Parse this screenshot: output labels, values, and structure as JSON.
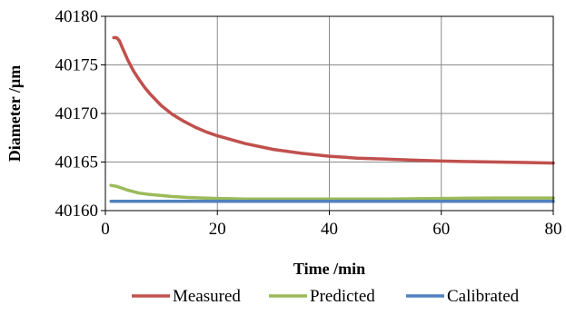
{
  "chart_data": {
    "type": "line",
    "title": "",
    "xlabel": "Time /min",
    "ylabel": "Diameter /µm",
    "xlim": [
      0,
      80
    ],
    "ylim": [
      40160,
      40180
    ],
    "x_ticks": [
      0,
      20,
      40,
      60,
      80
    ],
    "y_ticks": [
      40160,
      40165,
      40170,
      40175,
      40180
    ],
    "x_tick_labels": [
      "0",
      "20",
      "40",
      "60",
      "80"
    ],
    "y_tick_labels": [
      "40160",
      "40165",
      "40170",
      "40175",
      "40180"
    ],
    "grid": true,
    "legend_position": "bottom",
    "series": [
      {
        "name": "Measured",
        "color": "#c0504d",
        "x": [
          1.5,
          2,
          2.5,
          3,
          4,
          5,
          6,
          7,
          8,
          10,
          12,
          14,
          16,
          18,
          20,
          25,
          30,
          35,
          40,
          45,
          50,
          55,
          60,
          65,
          70,
          75,
          80
        ],
        "y": [
          40177.8,
          40177.8,
          40177.5,
          40176.8,
          40175.5,
          40174.4,
          40173.5,
          40172.7,
          40172.0,
          40170.8,
          40169.9,
          40169.2,
          40168.6,
          40168.1,
          40167.7,
          40166.9,
          40166.3,
          40165.9,
          40165.6,
          40165.4,
          40165.3,
          40165.2,
          40165.1,
          40165.05,
          40165.0,
          40164.95,
          40164.9
        ]
      },
      {
        "name": "Predicted",
        "color": "#9bbb59",
        "x": [
          1,
          2,
          3,
          4,
          5,
          6,
          8,
          10,
          12,
          15,
          20,
          25,
          30,
          40,
          50,
          60,
          70,
          80
        ],
        "y": [
          40162.6,
          40162.5,
          40162.3,
          40162.1,
          40161.95,
          40161.8,
          40161.65,
          40161.55,
          40161.45,
          40161.35,
          40161.25,
          40161.2,
          40161.2,
          40161.2,
          40161.2,
          40161.25,
          40161.3,
          40161.3
        ]
      },
      {
        "name": "Calibrated",
        "color": "#4f81bd",
        "x": [
          1,
          20,
          40,
          60,
          80
        ],
        "y": [
          40160.95,
          40160.95,
          40160.95,
          40160.95,
          40160.95
        ]
      }
    ]
  }
}
